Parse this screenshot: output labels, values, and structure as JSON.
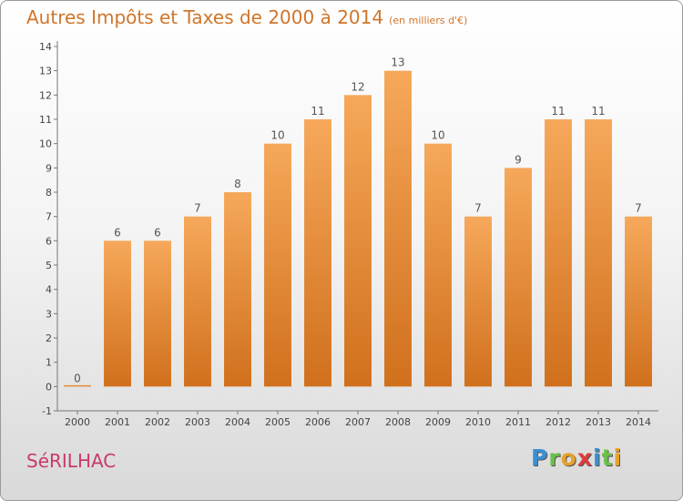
{
  "title": "Autres Impôts et Taxes de 2000 à 2014",
  "unit_note": "(en milliers d'€)",
  "commune": "SéRILHAC",
  "logo": {
    "text": "Proxiti",
    "colors": [
      "#3b8fd1",
      "#6cc04a",
      "#e8a12a",
      "#e03b3b",
      "#3b8fd1",
      "#6cc04a",
      "#e8a12a"
    ]
  },
  "colors": {
    "bar_light": "#f6a85a",
    "bar_dark": "#d0701c",
    "title": "#d0752a",
    "commune": "#c83a6a"
  },
  "chart_data": {
    "type": "bar",
    "categories": [
      "2000",
      "2001",
      "2002",
      "2003",
      "2004",
      "2005",
      "2006",
      "2007",
      "2008",
      "2009",
      "2010",
      "2011",
      "2012",
      "2013",
      "2014"
    ],
    "values": [
      0,
      6,
      6,
      7,
      8,
      10,
      11,
      12,
      13,
      10,
      7,
      9,
      11,
      11,
      7
    ],
    "data_labels": [
      "0",
      "6",
      "6",
      "7",
      "8",
      "10",
      "11",
      "12",
      "13",
      "10",
      "7",
      "9",
      "11",
      "11",
      "7"
    ],
    "ylim": [
      -1,
      14
    ],
    "yticks": [
      -1,
      0,
      1,
      2,
      3,
      4,
      5,
      6,
      7,
      8,
      9,
      10,
      11,
      12,
      13,
      14
    ],
    "grid": false
  }
}
